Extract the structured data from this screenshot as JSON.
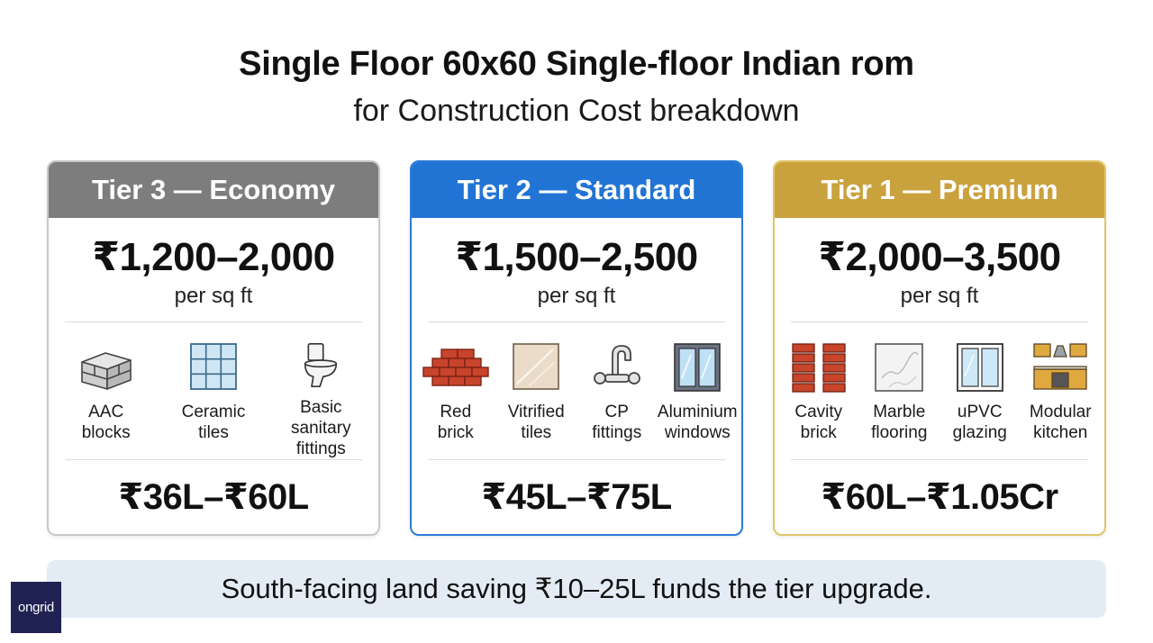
{
  "header": {
    "title": "Single Floor 60x60 Single-floor Indian rom",
    "subtitle": "for Construction Cost breakdown"
  },
  "tiers": [
    {
      "name": "Tier 3 — Economy",
      "price": "₹1,200–2,000",
      "unit": "per sq ft",
      "accent": "#7d7d7d",
      "features": [
        {
          "icon": "aac-blocks-icon",
          "label": "AAC\nblocks"
        },
        {
          "icon": "ceramic-tiles-icon",
          "label": "Ceramic\ntiles"
        },
        {
          "icon": "toilet-icon",
          "label": "Basic sanitary\nfittings"
        }
      ],
      "total": "₹36L–₹60L"
    },
    {
      "name": "Tier 2 — Standard",
      "price": "₹1,500–2,500",
      "unit": "per sq ft",
      "accent": "#2174d4",
      "features": [
        {
          "icon": "red-brick-icon",
          "label": "Red\nbrick"
        },
        {
          "icon": "vitrified-tiles-icon",
          "label": "Vitrified\ntiles"
        },
        {
          "icon": "faucet-icon",
          "label": "CP\nfittings"
        },
        {
          "icon": "aluminium-window-icon",
          "label": "Aluminium\nwindows"
        }
      ],
      "total": "₹45L–₹75L"
    },
    {
      "name": "Tier 1 — Premium",
      "price": "₹2,000–3,500",
      "unit": "per sq ft",
      "accent": "#c9a23e",
      "features": [
        {
          "icon": "cavity-brick-icon",
          "label": "Cavity\nbrick"
        },
        {
          "icon": "marble-icon",
          "label": "Marble\nflooring"
        },
        {
          "icon": "upvc-window-icon",
          "label": "uPVC\nglazing"
        },
        {
          "icon": "kitchen-icon",
          "label": "Modular\nkitchen"
        }
      ],
      "total": "₹60L–₹1.05Cr"
    }
  ],
  "banner": {
    "text": "South-facing land saving ₹10–25L funds the tier upgrade."
  },
  "logo": {
    "text": "ongrid"
  }
}
